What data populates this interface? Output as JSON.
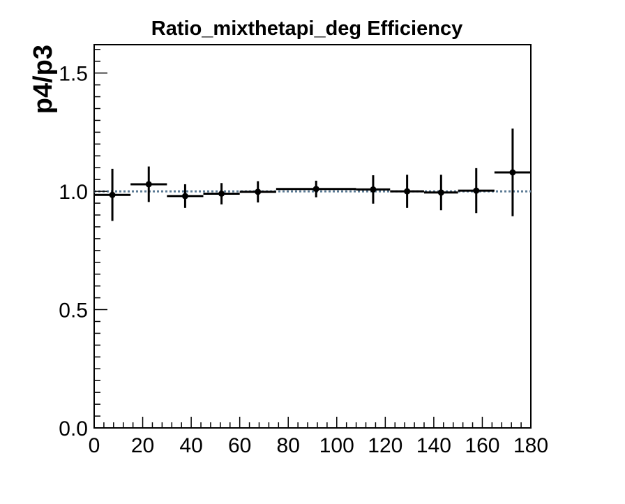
{
  "chart_data": {
    "type": "scatter",
    "title": "Ratio_mixthetapi_deg Efficiency",
    "xlabel": "",
    "ylabel": "p4/p3",
    "xlim": [
      0,
      180
    ],
    "ylim": [
      0,
      1.62
    ],
    "x_ticks": [
      0,
      20,
      40,
      60,
      80,
      100,
      120,
      140,
      160,
      180
    ],
    "x_tick_labels": [
      "0",
      "20",
      "40",
      "60",
      "80",
      "100",
      "120",
      "140",
      "160",
      "180"
    ],
    "y_ticks": [
      0.0,
      0.5,
      1.0,
      1.5
    ],
    "y_tick_labels": [
      "0.0",
      "0.5",
      "1.0",
      "1.5"
    ],
    "reference_line": {
      "y": 1.0,
      "style": "dotted",
      "color": "#5b7a94"
    },
    "grid": false,
    "series": [
      {
        "marker_color": "#000000",
        "points": [
          {
            "x_low": 0,
            "x_high": 15,
            "x": 7.5,
            "y": 0.985,
            "err": 0.11
          },
          {
            "x_low": 15,
            "x_high": 30,
            "x": 22.5,
            "y": 1.03,
            "err": 0.075
          },
          {
            "x_low": 30,
            "x_high": 45,
            "x": 37.5,
            "y": 0.98,
            "err": 0.05
          },
          {
            "x_low": 45,
            "x_high": 60,
            "x": 52.5,
            "y": 0.99,
            "err": 0.045
          },
          {
            "x_low": 60,
            "x_high": 75,
            "x": 67.5,
            "y": 0.998,
            "err": 0.045
          },
          {
            "x_low": 75,
            "x_high": 108,
            "x": 91.5,
            "y": 1.01,
            "err": 0.035
          },
          {
            "x_low": 108,
            "x_high": 122,
            "x": 115,
            "y": 1.008,
            "err": 0.06
          },
          {
            "x_low": 122,
            "x_high": 136,
            "x": 129,
            "y": 1.0,
            "err": 0.07
          },
          {
            "x_low": 136,
            "x_high": 150,
            "x": 143,
            "y": 0.995,
            "err": 0.075
          },
          {
            "x_low": 150,
            "x_high": 165,
            "x": 157.5,
            "y": 1.003,
            "err": 0.095
          },
          {
            "x_low": 165,
            "x_high": 180,
            "x": 172.5,
            "y": 1.08,
            "err": 0.185
          }
        ]
      }
    ]
  }
}
